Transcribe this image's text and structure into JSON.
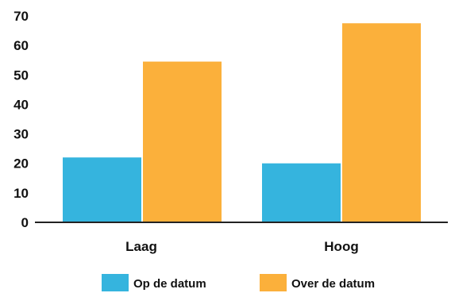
{
  "chart_data": {
    "type": "bar",
    "title": "",
    "xlabel": "",
    "ylabel": "",
    "categories": [
      "Laag",
      "Hoog"
    ],
    "series": [
      {
        "name": "Op de datum",
        "values": [
          22,
          20
        ],
        "color": "#35b4de"
      },
      {
        "name": "Over de datum",
        "values": [
          54.5,
          67.5
        ],
        "color": "#fbb03b"
      }
    ],
    "ylim": [
      0,
      70
    ],
    "yticks": [
      "0",
      "10",
      "20",
      "30",
      "40",
      "50",
      "60",
      "70"
    ],
    "grid": false,
    "legend_position": "bottom"
  }
}
